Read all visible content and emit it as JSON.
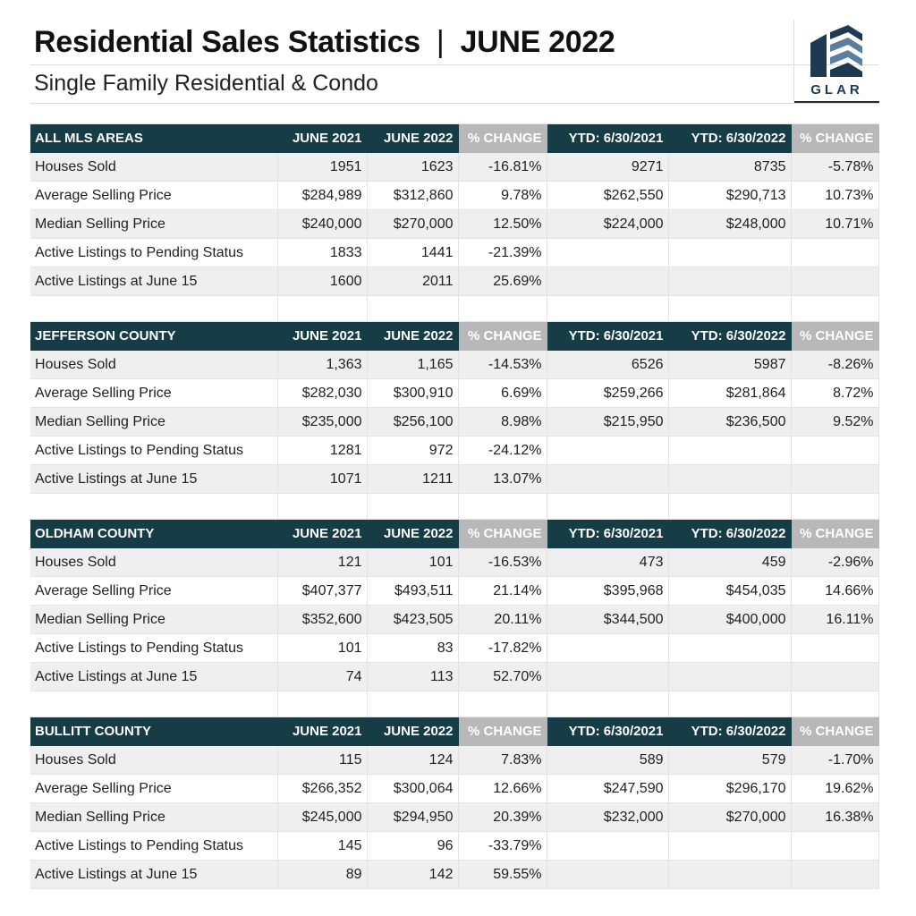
{
  "header": {
    "title_left": "Residential Sales Statistics",
    "title_sep": "|",
    "title_right": "JUNE 2022",
    "subtitle": "Single Family Residential & Condo",
    "logo_text": "GLAR"
  },
  "colors": {
    "header_bg": "#163c46",
    "pct_header_bg": "#b8b8b8",
    "row_shade": "#efefef",
    "logo_blue": "#1d3a52",
    "logo_light": "#5b7f9e"
  },
  "columns": [
    "JUNE 2021",
    "JUNE 2022",
    "% CHANGE",
    "YTD: 6/30/2021",
    "YTD: 6/30/2022",
    "% CHANGE"
  ],
  "sections": [
    {
      "name": "ALL MLS AREAS",
      "rows": [
        {
          "label": "Houses Sold",
          "values": [
            "1951",
            "1623",
            "-16.81%",
            "9271",
            "8735",
            "-5.78%"
          ]
        },
        {
          "label": "Average Selling Price",
          "values": [
            "$284,989",
            "$312,860",
            "9.78%",
            "$262,550",
            "$290,713",
            "10.73%"
          ]
        },
        {
          "label": "Median Selling Price",
          "values": [
            "$240,000",
            "$270,000",
            "12.50%",
            "$224,000",
            "$248,000",
            "10.71%"
          ]
        },
        {
          "label": "Active Listings to Pending Status",
          "values": [
            "1833",
            "1441",
            "-21.39%",
            "",
            "",
            ""
          ]
        },
        {
          "label": "Active Listings at June 15",
          "values": [
            "1600",
            "2011",
            "25.69%",
            "",
            "",
            ""
          ]
        }
      ]
    },
    {
      "name": "JEFFERSON COUNTY",
      "rows": [
        {
          "label": "Houses Sold",
          "values": [
            "1,363",
            "1,165",
            "-14.53%",
            "6526",
            "5987",
            "-8.26%"
          ]
        },
        {
          "label": "Average Selling Price",
          "values": [
            "$282,030",
            "$300,910",
            "6.69%",
            "$259,266",
            "$281,864",
            "8.72%"
          ]
        },
        {
          "label": "Median Selling Price",
          "values": [
            "$235,000",
            "$256,100",
            "8.98%",
            "$215,950",
            "$236,500",
            "9.52%"
          ]
        },
        {
          "label": "Active Listings to Pending Status",
          "values": [
            "1281",
            "972",
            "-24.12%",
            "",
            "",
            ""
          ]
        },
        {
          "label": "Active Listings at June 15",
          "values": [
            "1071",
            "1211",
            "13.07%",
            "",
            "",
            ""
          ]
        }
      ]
    },
    {
      "name": "OLDHAM COUNTY",
      "rows": [
        {
          "label": "Houses Sold",
          "values": [
            "121",
            "101",
            "-16.53%",
            "473",
            "459",
            "-2.96%"
          ]
        },
        {
          "label": "Average Selling Price",
          "values": [
            "$407,377",
            "$493,511",
            "21.14%",
            "$395,968",
            "$454,035",
            "14.66%"
          ]
        },
        {
          "label": "Median Selling Price",
          "values": [
            "$352,600",
            "$423,505",
            "20.11%",
            "$344,500",
            "$400,000",
            "16.11%"
          ]
        },
        {
          "label": "Active Listings to Pending Status",
          "values": [
            "101",
            "83",
            "-17.82%",
            "",
            "",
            ""
          ]
        },
        {
          "label": "Active Listings at June 15",
          "values": [
            "74",
            "113",
            "52.70%",
            "",
            "",
            ""
          ]
        }
      ]
    },
    {
      "name": "BULLITT COUNTY",
      "rows": [
        {
          "label": "Houses Sold",
          "values": [
            "115",
            "124",
            "7.83%",
            "589",
            "579",
            "-1.70%"
          ]
        },
        {
          "label": "Average Selling Price",
          "values": [
            "$266,352",
            "$300,064",
            "12.66%",
            "$247,590",
            "$296,170",
            "19.62%"
          ]
        },
        {
          "label": "Median Selling Price",
          "values": [
            "$245,000",
            "$294,950",
            "20.39%",
            "$232,000",
            "$270,000",
            "16.38%"
          ]
        },
        {
          "label": "Active Listings to Pending Status",
          "values": [
            "145",
            "96",
            "-33.79%",
            "",
            "",
            ""
          ]
        },
        {
          "label": "Active Listings at June 15",
          "values": [
            "89",
            "142",
            "59.55%",
            "",
            "",
            ""
          ]
        }
      ]
    }
  ]
}
